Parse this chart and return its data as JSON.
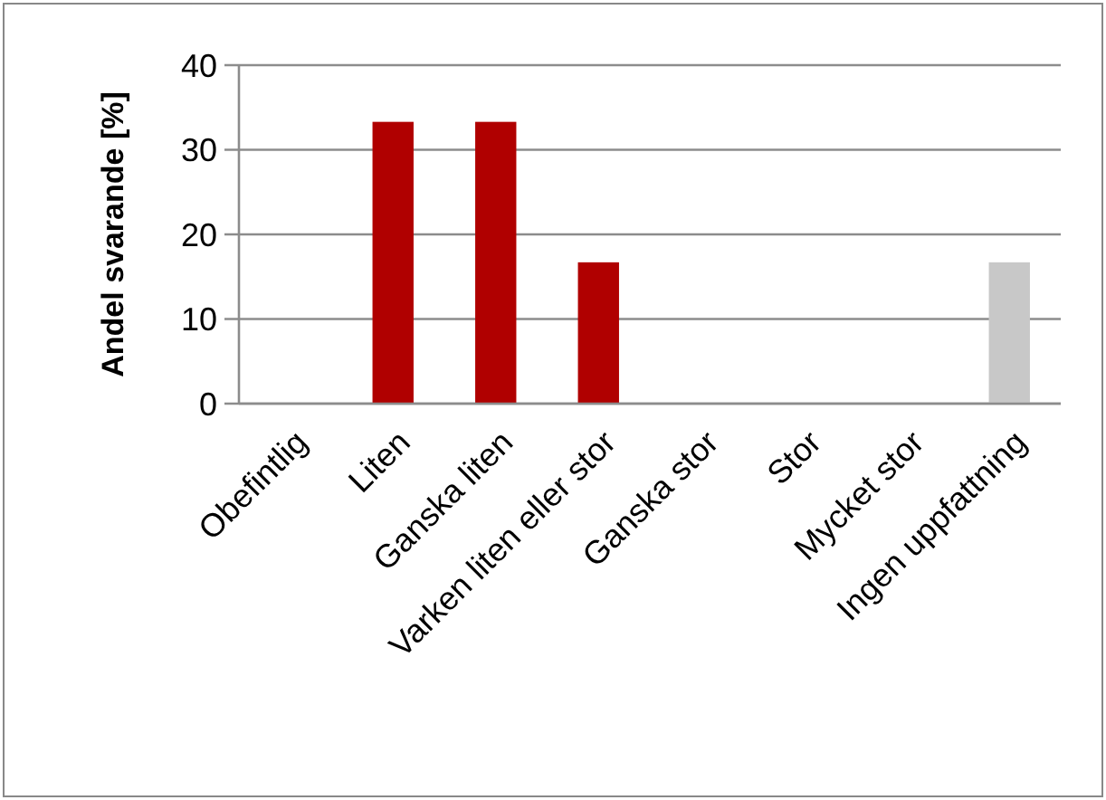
{
  "chart_data": {
    "type": "bar",
    "ylabel": "Andel svarande  [%]",
    "categories": [
      "Obefintlig",
      "Liten",
      "Ganska liten",
      "Varken liten eller stor",
      "Ganska stor",
      "Stor",
      "Mycket stor",
      "Ingen uppfattning"
    ],
    "values": [
      0,
      33.3,
      33.3,
      16.7,
      0,
      0,
      0,
      16.7
    ],
    "colors": [
      "#b00000",
      "#b00000",
      "#b00000",
      "#b00000",
      "#b00000",
      "#b00000",
      "#b00000",
      "#c8c8c8"
    ],
    "ylim": [
      0,
      40
    ],
    "yticks": [
      0,
      10,
      20,
      30,
      40
    ],
    "grid": "y"
  }
}
